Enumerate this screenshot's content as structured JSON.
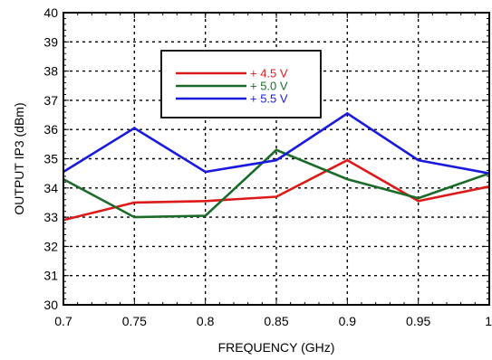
{
  "chart_data": {
    "type": "line",
    "title": "",
    "xlabel": "FREQUENCY (GHz)",
    "ylabel": "OUTPUT  IP3 (dBm)",
    "xlim": [
      0.7,
      1.0
    ],
    "ylim": [
      30,
      40
    ],
    "x_ticks": [
      "0.7",
      "0.75",
      "0.8",
      "0.85",
      "0.9",
      "0.95",
      "1"
    ],
    "y_ticks": [
      "30",
      "31",
      "32",
      "33",
      "34",
      "35",
      "36",
      "37",
      "38",
      "39",
      "40"
    ],
    "grid": true,
    "legend_position": "top-left",
    "x": [
      0.7,
      0.75,
      0.8,
      0.85,
      0.9,
      0.95,
      1.0
    ],
    "series": [
      {
        "name": "+ 4.5 V",
        "color": "#dd1a1a",
        "values": [
          32.9,
          33.5,
          33.55,
          33.7,
          34.95,
          33.55,
          34.05
        ]
      },
      {
        "name": "+ 5.0 V",
        "color": "#1a6b2a",
        "values": [
          34.3,
          33.0,
          33.05,
          35.3,
          34.3,
          33.65,
          34.5
        ]
      },
      {
        "name": "+ 5.5 V",
        "color": "#1a1adc",
        "values": [
          34.55,
          36.05,
          34.55,
          34.95,
          36.55,
          34.95,
          34.5
        ]
      }
    ]
  }
}
